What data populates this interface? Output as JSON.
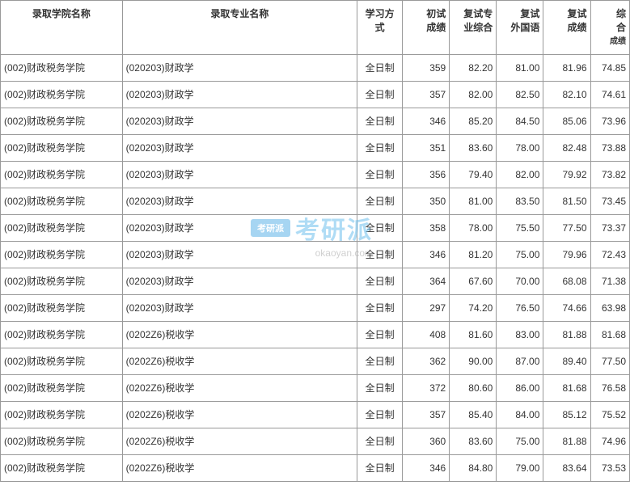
{
  "table": {
    "type": "table",
    "columns": [
      {
        "key": "school",
        "label": "录取学院名称",
        "class": "col-school",
        "align": "left"
      },
      {
        "key": "major",
        "label": "录取专业名称",
        "class": "col-major",
        "align": "left"
      },
      {
        "key": "mode",
        "label": "学习方\n式",
        "class": "col-mode",
        "align": "center"
      },
      {
        "key": "prelim",
        "label": "初试\n成绩",
        "class": "col-score",
        "align": "right"
      },
      {
        "key": "reexam_major",
        "label": "复试专\n业综合",
        "class": "col-score",
        "align": "right"
      },
      {
        "key": "reexam_lang",
        "label": "复试\n外国语",
        "class": "col-score",
        "align": "right"
      },
      {
        "key": "reexam_score",
        "label": "复试\n成绩",
        "class": "col-score",
        "align": "right"
      },
      {
        "key": "final",
        "label": "综\n合\n",
        "sublabel": "成绩",
        "class": "col-final",
        "align": "right"
      }
    ],
    "rows": [
      {
        "school": "(002)财政税务学院",
        "major": "(020203)财政学",
        "mode": "全日制",
        "prelim": "359",
        "reexam_major": "82.20",
        "reexam_lang": "81.00",
        "reexam_score": "81.96",
        "final": "74.85"
      },
      {
        "school": "(002)财政税务学院",
        "major": "(020203)财政学",
        "mode": "全日制",
        "prelim": "357",
        "reexam_major": "82.00",
        "reexam_lang": "82.50",
        "reexam_score": "82.10",
        "final": "74.61"
      },
      {
        "school": "(002)财政税务学院",
        "major": "(020203)财政学",
        "mode": "全日制",
        "prelim": "346",
        "reexam_major": "85.20",
        "reexam_lang": "84.50",
        "reexam_score": "85.06",
        "final": "73.96"
      },
      {
        "school": "(002)财政税务学院",
        "major": "(020203)财政学",
        "mode": "全日制",
        "prelim": "351",
        "reexam_major": "83.60",
        "reexam_lang": "78.00",
        "reexam_score": "82.48",
        "final": "73.88"
      },
      {
        "school": "(002)财政税务学院",
        "major": "(020203)财政学",
        "mode": "全日制",
        "prelim": "356",
        "reexam_major": "79.40",
        "reexam_lang": "82.00",
        "reexam_score": "79.92",
        "final": "73.82"
      },
      {
        "school": "(002)财政税务学院",
        "major": "(020203)财政学",
        "mode": "全日制",
        "prelim": "350",
        "reexam_major": "81.00",
        "reexam_lang": "83.50",
        "reexam_score": "81.50",
        "final": "73.45"
      },
      {
        "school": "(002)财政税务学院",
        "major": "(020203)财政学",
        "mode": "全日制",
        "prelim": "358",
        "reexam_major": "78.00",
        "reexam_lang": "75.50",
        "reexam_score": "77.50",
        "final": "73.37"
      },
      {
        "school": "(002)财政税务学院",
        "major": "(020203)财政学",
        "mode": "全日制",
        "prelim": "346",
        "reexam_major": "81.20",
        "reexam_lang": "75.00",
        "reexam_score": "79.96",
        "final": "72.43"
      },
      {
        "school": "(002)财政税务学院",
        "major": "(020203)财政学",
        "mode": "全日制",
        "prelim": "364",
        "reexam_major": "67.60",
        "reexam_lang": "70.00",
        "reexam_score": "68.08",
        "final": "71.38"
      },
      {
        "school": "(002)财政税务学院",
        "major": "(020203)财政学",
        "mode": "全日制",
        "prelim": "297",
        "reexam_major": "74.20",
        "reexam_lang": "76.50",
        "reexam_score": "74.66",
        "final": "63.98"
      },
      {
        "school": "(002)财政税务学院",
        "major": "(0202Z6)税收学",
        "mode": "全日制",
        "prelim": "408",
        "reexam_major": "81.60",
        "reexam_lang": "83.00",
        "reexam_score": "81.88",
        "final": "81.68"
      },
      {
        "school": "(002)财政税务学院",
        "major": "(0202Z6)税收学",
        "mode": "全日制",
        "prelim": "362",
        "reexam_major": "90.00",
        "reexam_lang": "87.00",
        "reexam_score": "89.40",
        "final": "77.50"
      },
      {
        "school": "(002)财政税务学院",
        "major": "(0202Z6)税收学",
        "mode": "全日制",
        "prelim": "372",
        "reexam_major": "80.60",
        "reexam_lang": "86.00",
        "reexam_score": "81.68",
        "final": "76.58"
      },
      {
        "school": "(002)财政税务学院",
        "major": "(0202Z6)税收学",
        "mode": "全日制",
        "prelim": "357",
        "reexam_major": "85.40",
        "reexam_lang": "84.00",
        "reexam_score": "85.12",
        "final": "75.52"
      },
      {
        "school": "(002)财政税务学院",
        "major": "(0202Z6)税收学",
        "mode": "全日制",
        "prelim": "360",
        "reexam_major": "83.60",
        "reexam_lang": "75.00",
        "reexam_score": "81.88",
        "final": "74.96"
      },
      {
        "school": "(002)财政税务学院",
        "major": "(0202Z6)税收学",
        "mode": "全日制",
        "prelim": "346",
        "reexam_major": "84.80",
        "reexam_lang": "79.00",
        "reexam_score": "83.64",
        "final": "73.53"
      }
    ],
    "border_color": "#999999",
    "text_color": "#333333",
    "background_color": "#ffffff",
    "font_size": 12
  },
  "watermark": {
    "badge_text": "考研派",
    "main_text": "考研派",
    "url_text": "okaoyan.com",
    "badge_bg": "#5fb4e8",
    "badge_color": "#ffffff",
    "main_color": "#6fc0ee",
    "url_color": "#aaaaaa"
  }
}
